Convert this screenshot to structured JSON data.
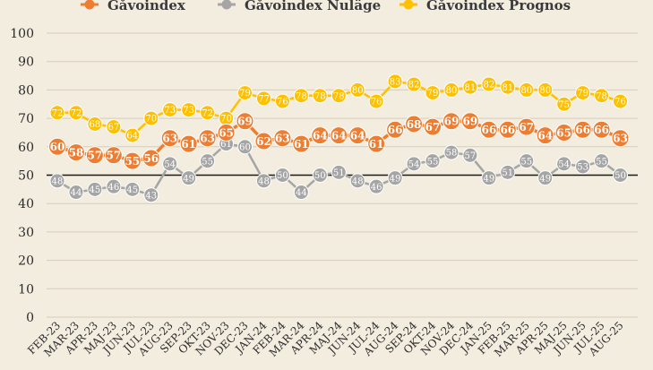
{
  "chart_data": {
    "type": "line",
    "categories": [
      "FEB-23",
      "MAR-23",
      "APR-23",
      "MAJ-23",
      "JUN-23",
      "JUL-23",
      "AUG-23",
      "SEP-23",
      "OKT-23",
      "NOV-23",
      "DEC-23",
      "JAN-24",
      "FEB-24",
      "MAR-24",
      "APR-24",
      "MAJ-24",
      "JUN-24",
      "JUL-24",
      "AUG-24",
      "SEP-24",
      "OKT-24",
      "NOV-24",
      "DEC-24",
      "JAN-25",
      "FEB-25",
      "MAR-25",
      "APR-25",
      "MAJ-25",
      "JUN-25",
      "JUL-25",
      "AUG-25"
    ],
    "series": [
      {
        "name": "Gåvoindex",
        "color": "#ed7d31",
        "values": [
          60,
          58,
          57,
          57,
          55,
          56,
          63,
          61,
          63,
          65,
          69,
          62,
          63,
          61,
          64,
          64,
          64,
          61,
          66,
          68,
          67,
          69,
          69,
          66,
          66,
          67,
          64,
          65,
          66,
          66,
          63
        ]
      },
      {
        "name": "Gåvoindex Nuläge",
        "color": "#a5a5a5",
        "values": [
          48,
          44,
          45,
          46,
          45,
          43,
          54,
          49,
          55,
          61,
          60,
          48,
          50,
          44,
          50,
          51,
          48,
          46,
          49,
          54,
          55,
          58,
          57,
          49,
          51,
          55,
          49,
          54,
          53,
          55,
          50
        ]
      },
      {
        "name": "Gåvoindex Prognos",
        "color": "#ffc000",
        "values": [
          72,
          72,
          68,
          67,
          64,
          70,
          73,
          73,
          72,
          70,
          79,
          77,
          76,
          78,
          78,
          78,
          80,
          76,
          83,
          82,
          79,
          80,
          81,
          82,
          81,
          80,
          80,
          75,
          79,
          78,
          76
        ]
      }
    ],
    "ylim": [
      0,
      100
    ],
    "yticks": [
      0,
      10,
      20,
      30,
      40,
      50,
      60,
      70,
      80,
      90,
      100
    ],
    "reference_line": 50,
    "grid": true,
    "legend_position": "top"
  }
}
